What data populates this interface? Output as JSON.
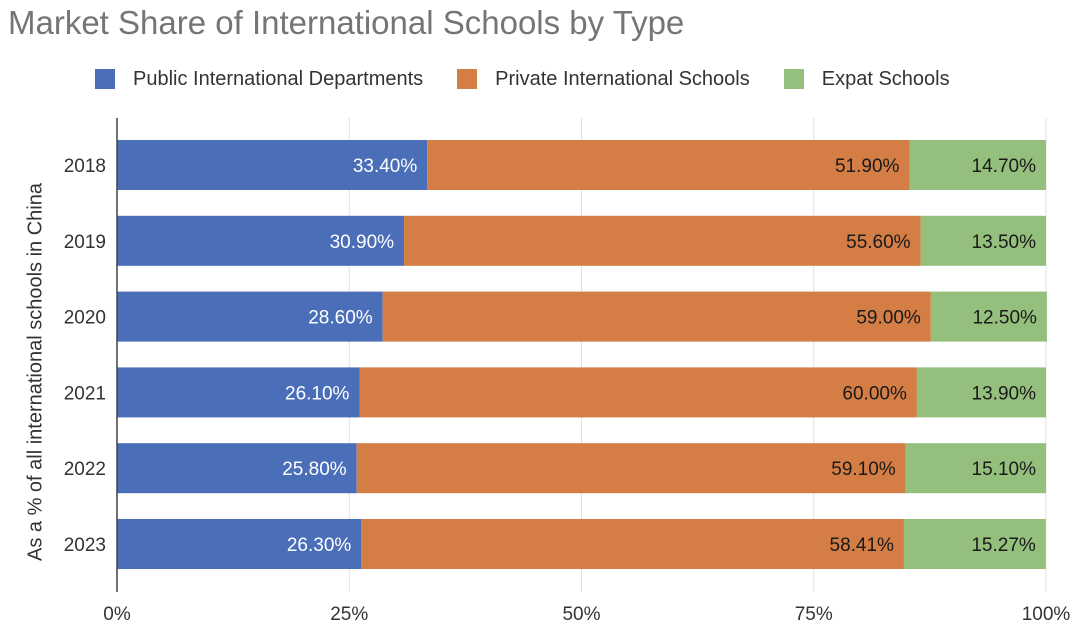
{
  "chart_data": {
    "type": "bar",
    "orientation": "horizontal",
    "stacked": true,
    "title": "Market Share of International Schools by Type",
    "xlabel": "",
    "ylabel": "As a % of all international schools in China",
    "xlim": [
      0,
      100
    ],
    "xticks": [
      "0%",
      "25%",
      "50%",
      "75%",
      "100%"
    ],
    "categories": [
      "2018",
      "2019",
      "2020",
      "2021",
      "2022",
      "2023"
    ],
    "series": [
      {
        "name": "Public International Departments",
        "color": "#4a6eb8",
        "label_color": "#ffffff",
        "values": [
          33.4,
          30.9,
          28.6,
          26.1,
          25.8,
          26.3
        ],
        "labels": [
          "33.40%",
          "30.90%",
          "28.60%",
          "26.10%",
          "25.80%",
          "26.30%"
        ]
      },
      {
        "name": "Private International Schools",
        "color": "#d47d45",
        "label_color": "#1a1a1a",
        "values": [
          51.9,
          55.6,
          59.0,
          60.0,
          59.1,
          58.41
        ],
        "labels": [
          "51.90%",
          "55.60%",
          "59.00%",
          "60.00%",
          "59.10%",
          "58.41%"
        ]
      },
      {
        "name": "Expat Schools",
        "color": "#94bf7c",
        "label_color": "#1a1a1a",
        "values": [
          14.7,
          13.5,
          12.5,
          13.9,
          15.1,
          15.27
        ],
        "labels": [
          "14.70%",
          "13.50%",
          "12.50%",
          "13.90%",
          "15.10%",
          "15.27%"
        ]
      }
    ],
    "legend_position": "top",
    "grid": true
  }
}
